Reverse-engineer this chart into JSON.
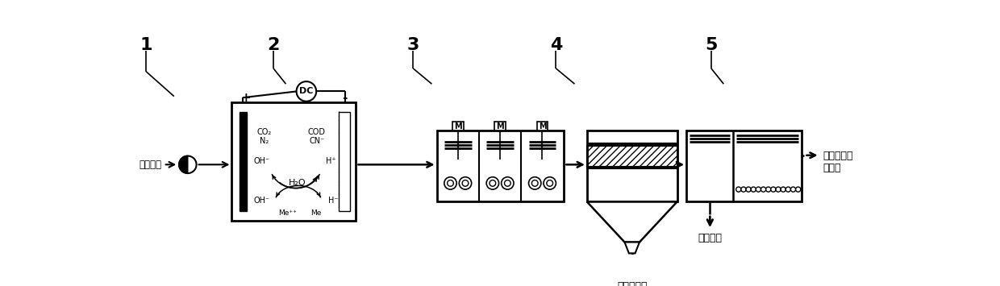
{
  "bg_color": "#ffffff",
  "line_color": "#000000",
  "label1": "1",
  "label2": "2",
  "label3": "3",
  "label4": "4",
  "label5": "5",
  "text_input": "含氰废水",
  "text_output1": "达标水回用\n或排放",
  "text_heavy_metal": "重金属整泥",
  "text_sludge": "活性污泥",
  "dc_label": "DC",
  "plus_label": "+",
  "minus_label": "-",
  "co2_n2": "CO₂\nN₂",
  "cod_cn": "COD\nCN⁻",
  "oh_upper": "OH⁻",
  "h_upper_right": "H⁺",
  "h2o": "H₂O",
  "oh_lower": "OH⁻",
  "h_lower": "H⁻",
  "men_plus": "Me⁺⁺",
  "me": "Me",
  "motor_label": "M"
}
